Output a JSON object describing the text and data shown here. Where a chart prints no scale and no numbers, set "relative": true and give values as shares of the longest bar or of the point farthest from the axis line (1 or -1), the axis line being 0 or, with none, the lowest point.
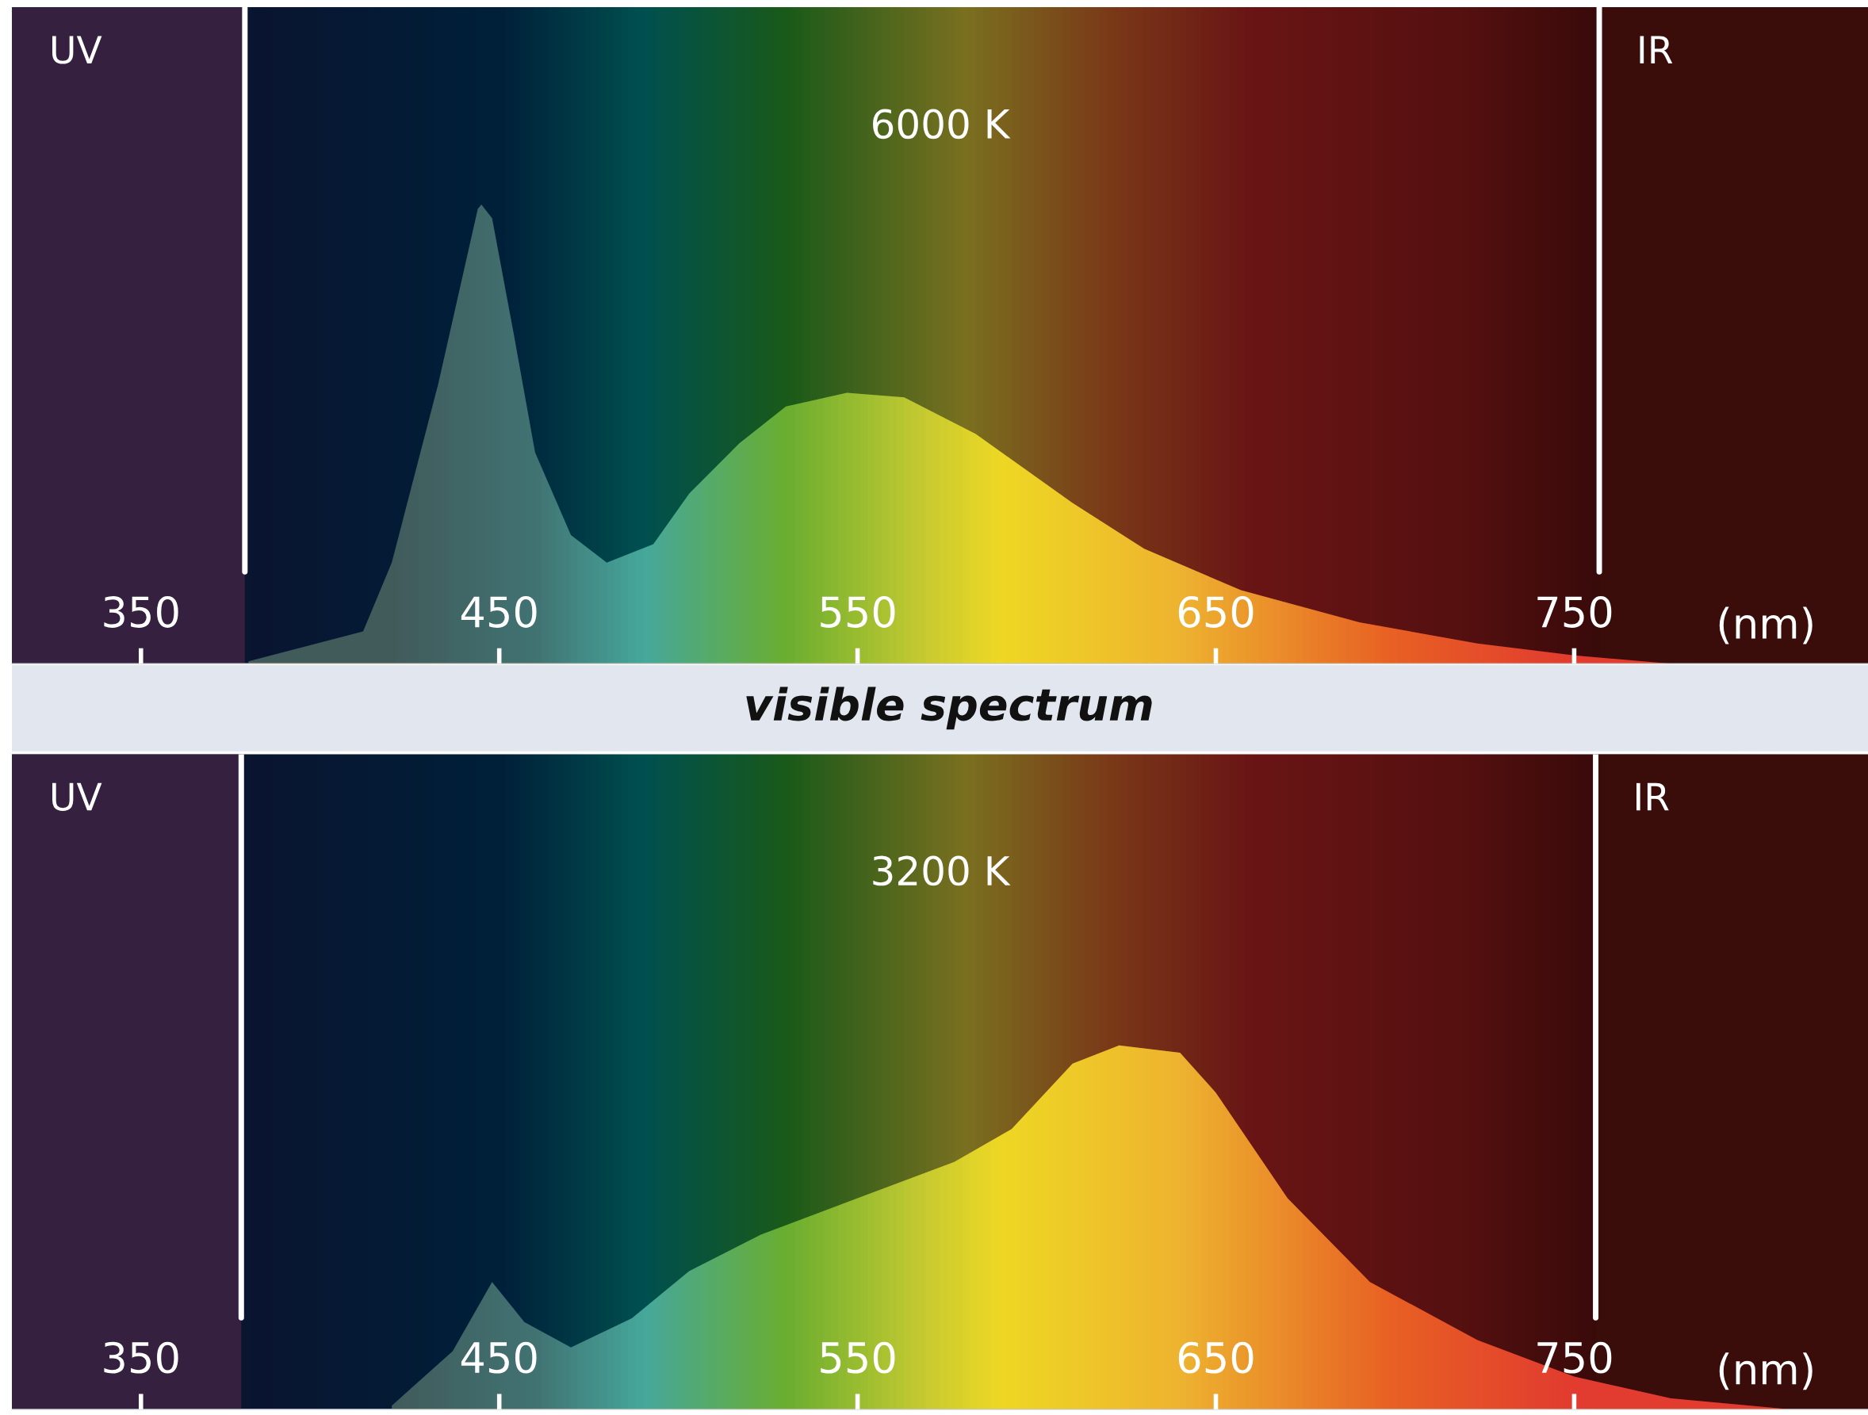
{
  "chart_data": [
    {
      "type": "area",
      "title": "6000 K",
      "xlabel": "(nm)",
      "relative": true,
      "legend": false,
      "grid": false,
      "xlim": [
        314,
        832
      ],
      "xticks": [
        350,
        450,
        550,
        650,
        750
      ],
      "annotations": [
        "visible spectrum"
      ],
      "bands": [
        {
          "axis": "x",
          "from": 314,
          "to": 379,
          "label": "UV",
          "color": "#35203f"
        },
        {
          "axis": "x",
          "from": 757,
          "to": 832,
          "label": "IR",
          "color": "#3a0c0a"
        }
      ],
      "ref_lines": [
        {
          "axis": "x",
          "value": 379,
          "color": "#ffffff"
        },
        {
          "axis": "x",
          "value": 757,
          "color": "#ffffff"
        }
      ],
      "series": [
        {
          "color": "#e8c030",
          "x": [
            380,
            412,
            420,
            433,
            444,
            445,
            448,
            454,
            460,
            470,
            480,
            493,
            503,
            517,
            530,
            547,
            563,
            583,
            610,
            630,
            657,
            690,
            723,
            750,
            777
          ],
          "values": [
            0.005,
            0.07,
            0.22,
            0.61,
            0.99,
            1.0,
            0.97,
            0.72,
            0.46,
            0.28,
            0.22,
            0.26,
            0.37,
            0.48,
            0.56,
            0.59,
            0.58,
            0.5,
            0.35,
            0.25,
            0.16,
            0.09,
            0.044,
            0.018,
            0
          ]
        }
      ]
    },
    {
      "type": "area",
      "title": "3200 K",
      "xlabel": "(nm)",
      "relative": true,
      "legend": false,
      "grid": false,
      "xlim": [
        314,
        832
      ],
      "xticks": [
        350,
        450,
        550,
        650,
        750
      ],
      "bands": [
        {
          "axis": "x",
          "from": 314,
          "to": 378,
          "label": "UV",
          "color": "#35203f"
        },
        {
          "axis": "x",
          "from": 756,
          "to": 832,
          "label": "IR",
          "color": "#3a0c0a"
        }
      ],
      "ref_lines": [
        {
          "axis": "x",
          "value": 378,
          "color": "#ffffff"
        },
        {
          "axis": "x",
          "value": 756,
          "color": "#ffffff"
        }
      ],
      "series": [
        {
          "color": "#e8c030",
          "x": [
            420,
            437,
            448,
            457,
            470,
            487,
            503,
            523,
            550,
            577,
            593,
            610,
            623,
            640,
            650,
            670,
            693,
            723,
            750,
            777,
            810
          ],
          "values": [
            0.01,
            0.16,
            0.35,
            0.24,
            0.17,
            0.25,
            0.38,
            0.48,
            0.58,
            0.68,
            0.77,
            0.95,
            1.0,
            0.98,
            0.87,
            0.58,
            0.35,
            0.19,
            0.09,
            0.03,
            0
          ]
        }
      ]
    }
  ]
}
